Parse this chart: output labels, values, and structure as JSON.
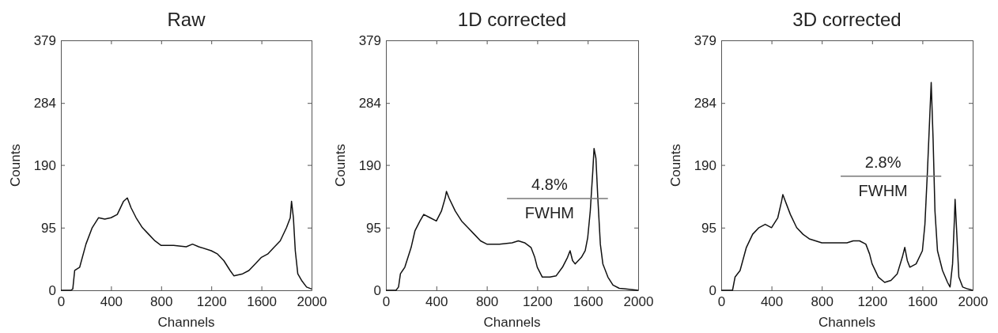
{
  "chart_data": [
    {
      "type": "line",
      "title": "Raw",
      "xlabel": "Channels",
      "ylabel": "Counts",
      "xlim": [
        0,
        2000
      ],
      "xticks": [
        0,
        400,
        800,
        1200,
        1600,
        2000
      ],
      "ylim": [
        0,
        379
      ],
      "yticks": [
        0,
        95,
        190,
        284,
        379
      ],
      "series": [
        {
          "color": "#111111",
          "x": [
            0,
            80,
            95,
            110,
            150,
            200,
            250,
            300,
            350,
            400,
            450,
            500,
            530,
            560,
            600,
            650,
            700,
            750,
            800,
            900,
            1000,
            1050,
            1100,
            1200,
            1250,
            1300,
            1350,
            1380,
            1450,
            1500,
            1550,
            1600,
            1650,
            1700,
            1750,
            1800,
            1830,
            1840,
            1855,
            1870,
            1890,
            1920,
            1960,
            2000
          ],
          "values": [
            0,
            0,
            2,
            30,
            35,
            70,
            95,
            110,
            108,
            110,
            115,
            135,
            140,
            125,
            110,
            95,
            85,
            75,
            68,
            68,
            66,
            70,
            66,
            60,
            55,
            45,
            30,
            22,
            25,
            30,
            40,
            50,
            55,
            65,
            75,
            95,
            110,
            135,
            110,
            60,
            25,
            15,
            5,
            2
          ]
        }
      ]
    },
    {
      "type": "line",
      "title": "1D corrected",
      "xlabel": "Channels",
      "ylabel": "Counts",
      "xlim": [
        0,
        2000
      ],
      "xticks": [
        0,
        400,
        800,
        1200,
        1600,
        2000
      ],
      "ylim": [
        0,
        379
      ],
      "yticks": [
        0,
        95,
        190,
        284,
        379
      ],
      "annotations": [
        "4.8%",
        "FWHM"
      ],
      "series": [
        {
          "color": "#111111",
          "x": [
            0,
            80,
            100,
            115,
            150,
            200,
            230,
            270,
            300,
            350,
            400,
            440,
            470,
            480,
            500,
            550,
            600,
            650,
            700,
            750,
            800,
            900,
            1000,
            1050,
            1100,
            1150,
            1180,
            1200,
            1240,
            1300,
            1350,
            1400,
            1440,
            1460,
            1480,
            1500,
            1550,
            1580,
            1600,
            1620,
            1640,
            1650,
            1665,
            1680,
            1700,
            1720,
            1760,
            1800,
            1850,
            1900,
            2000
          ],
          "values": [
            0,
            0,
            5,
            25,
            35,
            65,
            90,
            105,
            115,
            110,
            105,
            120,
            140,
            150,
            140,
            120,
            105,
            95,
            85,
            75,
            70,
            70,
            72,
            75,
            72,
            65,
            50,
            35,
            20,
            20,
            22,
            35,
            50,
            60,
            45,
            40,
            50,
            60,
            80,
            120,
            180,
            215,
            200,
            140,
            70,
            40,
            20,
            8,
            3,
            2,
            0
          ]
        },
        {
          "type": "line",
          "color": "#777777",
          "x": [
            960,
            1760
          ],
          "values": [
            139,
            139
          ]
        }
      ]
    },
    {
      "type": "line",
      "title": "3D corrected",
      "xlabel": "Channels",
      "ylabel": "Counts",
      "xlim": [
        0,
        2000
      ],
      "xticks": [
        0,
        400,
        800,
        1200,
        1600,
        2000
      ],
      "ylim": [
        0,
        379
      ],
      "yticks": [
        0,
        95,
        190,
        284,
        379
      ],
      "annotations": [
        "2.8%",
        "FWHM"
      ],
      "series": [
        {
          "color": "#111111",
          "x": [
            0,
            90,
            110,
            150,
            200,
            250,
            300,
            350,
            400,
            450,
            480,
            490,
            520,
            550,
            600,
            650,
            700,
            800,
            900,
            1000,
            1050,
            1100,
            1150,
            1180,
            1200,
            1250,
            1300,
            1350,
            1400,
            1440,
            1460,
            1480,
            1500,
            1550,
            1600,
            1620,
            1640,
            1660,
            1670,
            1685,
            1700,
            1720,
            1760,
            1800,
            1820,
            1840,
            1855,
            1860,
            1875,
            1890,
            1920,
            1960,
            2000
          ],
          "values": [
            0,
            0,
            20,
            30,
            65,
            85,
            95,
            100,
            95,
            110,
            135,
            145,
            130,
            115,
            95,
            85,
            78,
            72,
            72,
            72,
            75,
            75,
            70,
            55,
            40,
            20,
            12,
            15,
            25,
            50,
            65,
            45,
            35,
            40,
            60,
            100,
            180,
            270,
            315,
            230,
            120,
            60,
            30,
            12,
            5,
            40,
            110,
            138,
            80,
            20,
            5,
            2,
            0
          ]
        },
        {
          "type": "line",
          "color": "#777777",
          "x": [
            950,
            1750
          ],
          "values": [
            173,
            173
          ]
        }
      ]
    }
  ]
}
